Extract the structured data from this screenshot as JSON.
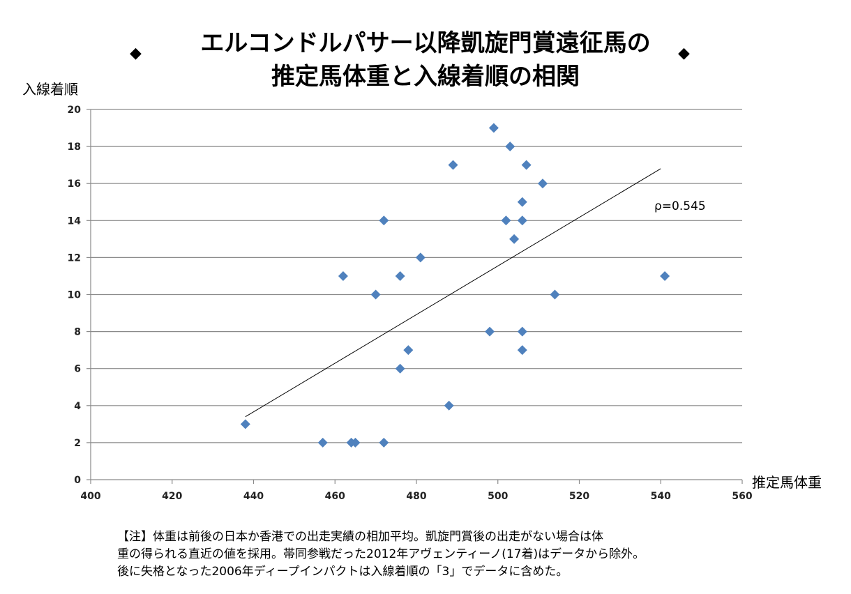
{
  "title": {
    "line1": "エルコンドルパサー以降凱旋門賞遠征馬の",
    "line2": "推定馬体重と入線着順の相関",
    "diamond_left": "◆",
    "diamond_right": "◆"
  },
  "annotation": {
    "rho": "ρ=0.545"
  },
  "note": {
    "line1": "【注】体重は前後の日本か香港での出走実績の相加平均。凱旋門賞後の出走がない場合は体",
    "line2": "重の得られる直近の値を採用。帯同参戦だった2012年アヴェンティーノ(17着)はデータから除外。",
    "line3": "後に失格となった2006年ディープインパクトは入線着順の「3」でデータに含めた。"
  },
  "chart_data": {
    "type": "scatter",
    "title": "エルコンドルパサー以降凱旋門賞遠征馬の推定馬体重と入線着順の相関",
    "xlabel": "推定馬体重",
    "ylabel": "入線着順",
    "xlim": [
      400,
      560
    ],
    "ylim": [
      0,
      20
    ],
    "xticks": [
      400,
      420,
      440,
      460,
      480,
      500,
      520,
      540,
      560
    ],
    "yticks": [
      0,
      2,
      4,
      6,
      8,
      10,
      12,
      14,
      16,
      18,
      20
    ],
    "grid": true,
    "marker": "diamond",
    "color": "#4F81BD",
    "points": [
      {
        "x": 438,
        "y": 3
      },
      {
        "x": 457,
        "y": 2
      },
      {
        "x": 462,
        "y": 11
      },
      {
        "x": 464,
        "y": 2
      },
      {
        "x": 465,
        "y": 2
      },
      {
        "x": 470,
        "y": 10
      },
      {
        "x": 472,
        "y": 14
      },
      {
        "x": 472,
        "y": 2
      },
      {
        "x": 476,
        "y": 11
      },
      {
        "x": 476,
        "y": 6
      },
      {
        "x": 478,
        "y": 7
      },
      {
        "x": 481,
        "y": 12
      },
      {
        "x": 488,
        "y": 4
      },
      {
        "x": 489,
        "y": 17
      },
      {
        "x": 498,
        "y": 8
      },
      {
        "x": 499,
        "y": 19
      },
      {
        "x": 502,
        "y": 14
      },
      {
        "x": 503,
        "y": 18
      },
      {
        "x": 504,
        "y": 13
      },
      {
        "x": 506,
        "y": 15
      },
      {
        "x": 506,
        "y": 14
      },
      {
        "x": 506,
        "y": 8
      },
      {
        "x": 506,
        "y": 7
      },
      {
        "x": 507,
        "y": 17
      },
      {
        "x": 511,
        "y": 16
      },
      {
        "x": 514,
        "y": 10
      },
      {
        "x": 541,
        "y": 11
      }
    ],
    "trendline": {
      "x": [
        438,
        540
      ],
      "y": [
        3.4,
        16.8
      ]
    },
    "correlation": 0.545
  }
}
